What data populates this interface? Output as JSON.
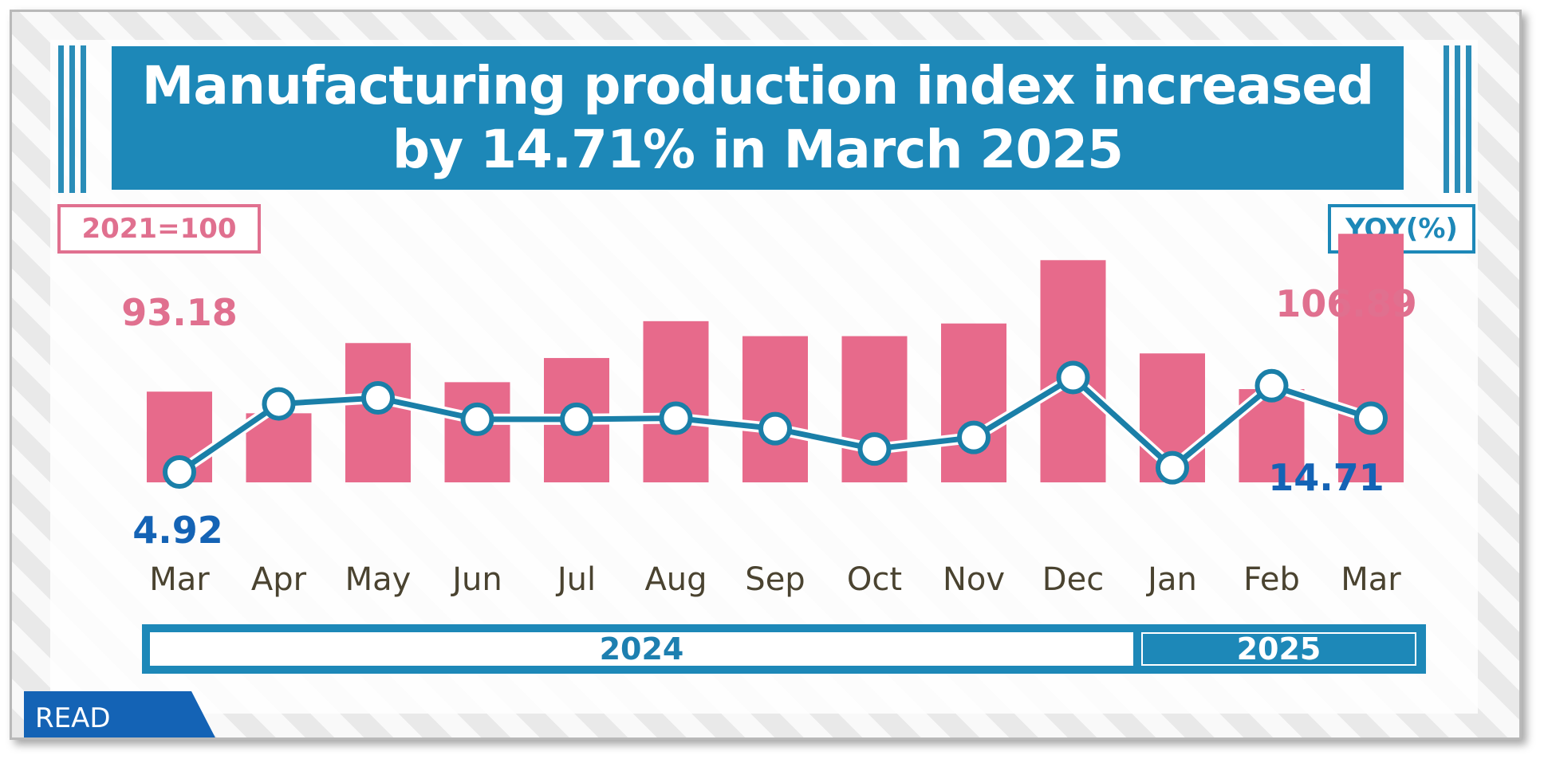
{
  "title": "Manufacturing production index increased\nby 14.71% in March 2025",
  "base_label": "2021=100",
  "yoy_label": "YOY(%)",
  "read_label": "READ",
  "years": {
    "y2024": "2024",
    "y2025": "2025"
  },
  "colors": {
    "bar": "#e76a8b",
    "line": "#1a7fa8",
    "marker_fill": "#ffffff",
    "title_band": "#1d88b8",
    "bar_label": "#e0708f",
    "yoy_label": "#1463b5",
    "month_label": "#4a4330"
  },
  "chart_data": {
    "type": "bar",
    "categories": [
      "Mar",
      "Apr",
      "May",
      "Jun",
      "Jul",
      "Aug",
      "Sep",
      "Oct",
      "Nov",
      "Dec",
      "Jan",
      "Feb",
      "Mar"
    ],
    "series": [
      {
        "name": "2021=100",
        "type": "bar",
        "values": [
          93.18,
          91.3,
          97.4,
          94.0,
          96.1,
          99.3,
          98.0,
          98.0,
          99.1,
          104.6,
          96.5,
          93.4,
          106.89
        ]
      },
      {
        "name": "YOY(%)",
        "type": "line",
        "values": [
          4.92,
          17.3,
          18.4,
          14.5,
          14.5,
          14.7,
          12.8,
          9.1,
          11.2,
          22.1,
          5.7,
          20.6,
          14.71
        ]
      }
    ],
    "data_labels": [
      {
        "series": "2021=100",
        "index": 0,
        "text": "93.18"
      },
      {
        "series": "2021=100",
        "index": 12,
        "text": "106.89"
      },
      {
        "series": "YOY(%)",
        "index": 0,
        "text": "4.92"
      },
      {
        "series": "YOY(%)",
        "index": 12,
        "text": "14.71"
      }
    ],
    "year_groups": [
      {
        "label": "2024",
        "from": 0,
        "to": 9
      },
      {
        "label": "2025",
        "from": 10,
        "to": 12
      }
    ],
    "legend": "none",
    "grid": false
  }
}
